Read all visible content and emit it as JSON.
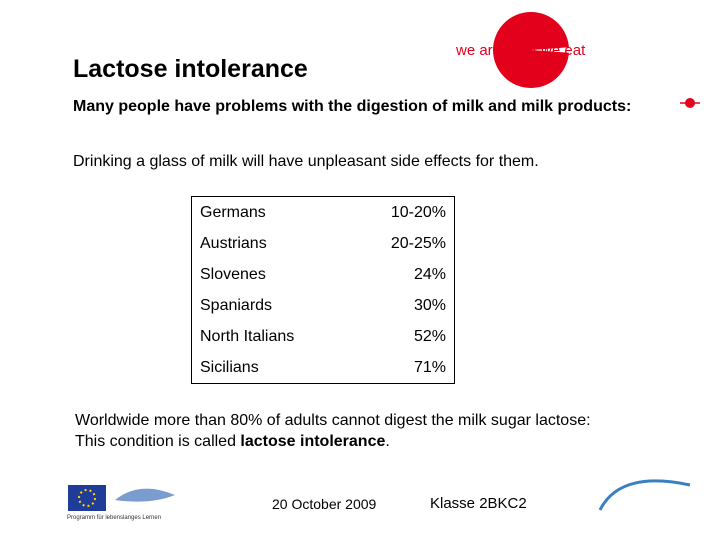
{
  "header": {
    "title": "Lactose intolerance",
    "logo_text": "we are what we eat"
  },
  "intro": {
    "line1": "Many people have problems with the digestion of milk and milk products:",
    "line2": "Drinking a glass of milk will have unpleasant side effects for them."
  },
  "table": {
    "rows": [
      [
        "Germans",
        "10-20%"
      ],
      [
        "Austrians",
        "20-25%"
      ],
      [
        "Slovenes",
        "24%"
      ],
      [
        "Spaniards",
        "30%"
      ],
      [
        "North Italians",
        "52%"
      ],
      [
        "Sicilians",
        "71%"
      ]
    ]
  },
  "conclusion": {
    "line1": "Worldwide more than 80% of adults cannot digest the milk sugar lactose:",
    "line2_start": "This condition is called",
    "line2_bold": "lactose intolerance",
    "line2_end": "."
  },
  "footer": {
    "date": "20 October 2009",
    "class": "Klasse 2BKC2",
    "eu_caption": "Programm für lebenslanges Lernen"
  }
}
